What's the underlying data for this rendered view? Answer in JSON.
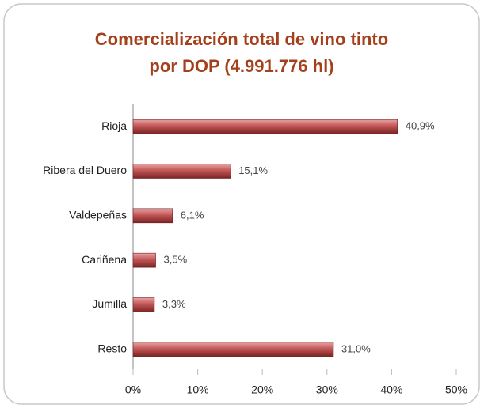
{
  "chart_data": {
    "type": "bar",
    "orientation": "horizontal",
    "title": [
      "Comercialización total de vino tinto",
      "por DOP   (4.991.776 hl)"
    ],
    "categories": [
      "Rioja",
      "Ribera del Duero",
      "Valdepeñas",
      "Cariñena",
      "Jumilla",
      "Resto"
    ],
    "values": [
      40.9,
      15.1,
      6.1,
      3.5,
      3.3,
      31.0
    ],
    "value_labels": [
      "40,9%",
      "15,1%",
      "6,1%",
      "3,5%",
      "3,3%",
      "31,0%"
    ],
    "color": "#b94848",
    "xlim": [
      0,
      50
    ],
    "xticks": [
      {
        "value": 0,
        "label": "0%"
      },
      {
        "value": 10,
        "label": "10%"
      },
      {
        "value": 20,
        "label": "20%"
      },
      {
        "value": 30,
        "label": "30%"
      },
      {
        "value": 40,
        "label": "40%"
      },
      {
        "value": 50,
        "label": "50%"
      }
    ],
    "grid": false
  }
}
